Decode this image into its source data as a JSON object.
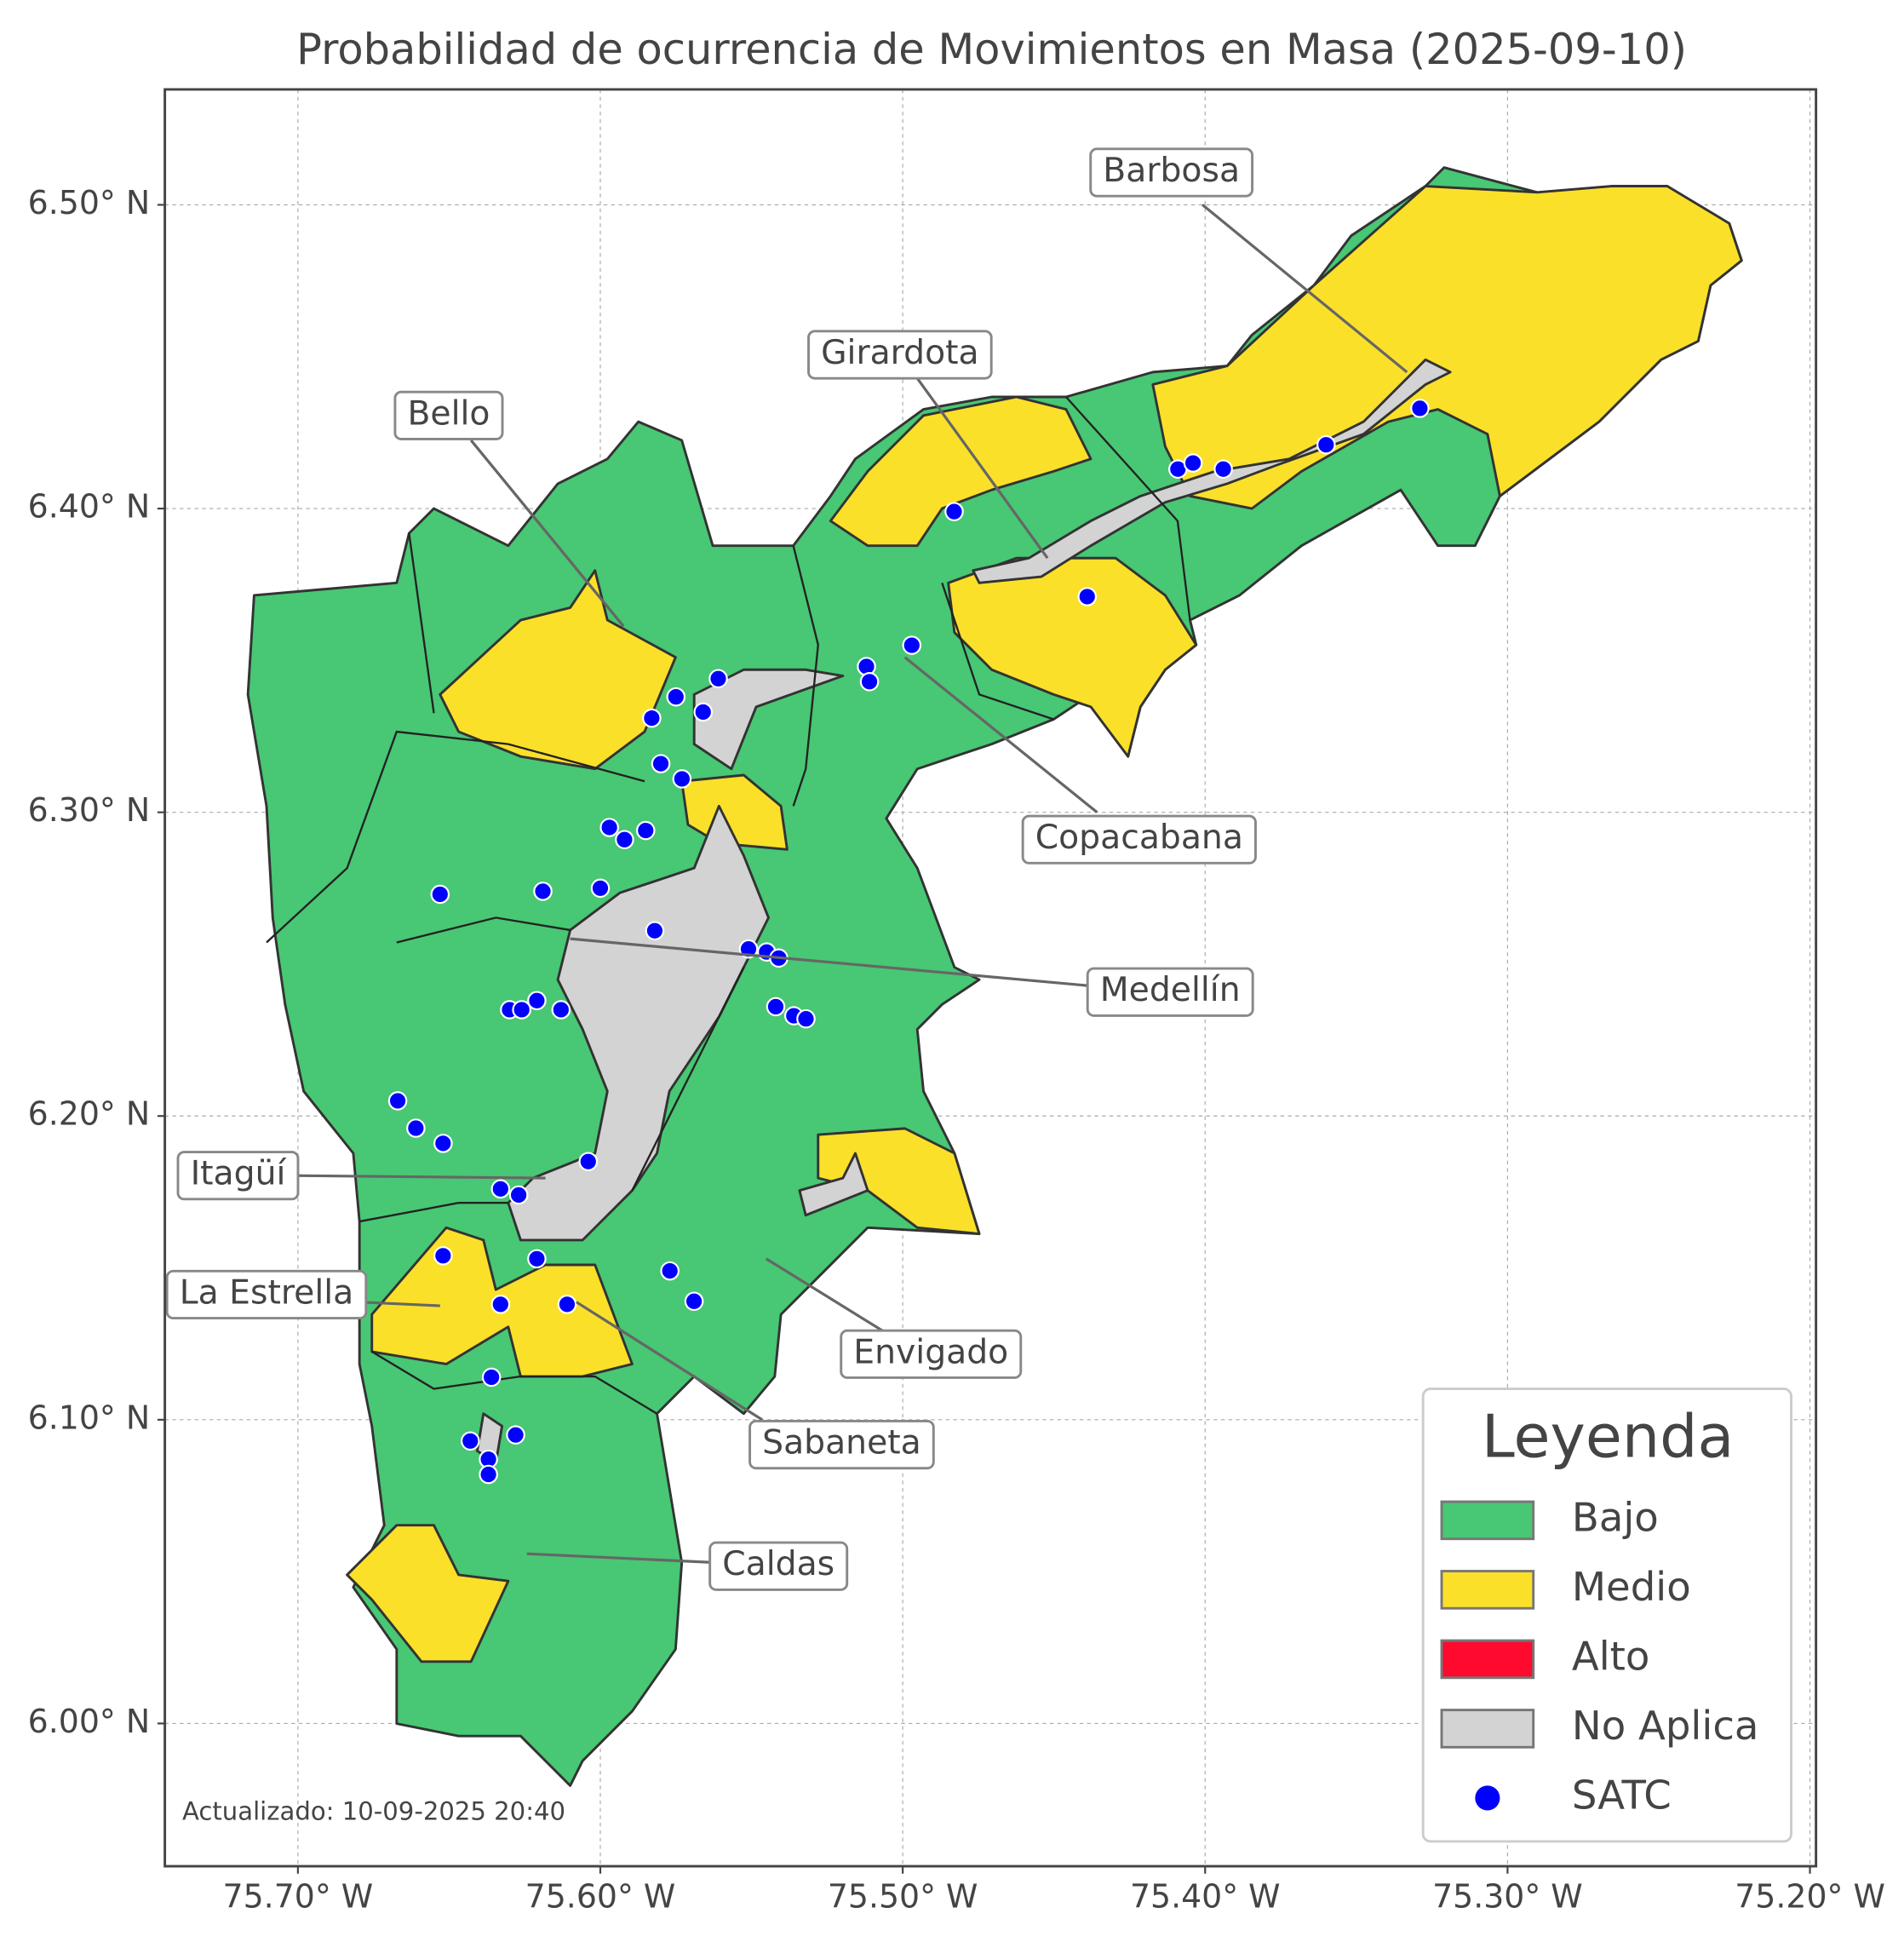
{
  "map": {
    "title": "Probabilidad de ocurrencia de Movimientos en Masa (2025-09-10)",
    "xlim": [
      -75.744,
      -75.198
    ],
    "ylim": [
      5.953,
      6.538
    ],
    "grid": true,
    "xticks": [
      {
        "value": -75.7,
        "label": "75.70° W"
      },
      {
        "value": -75.6,
        "label": "75.60° W"
      },
      {
        "value": -75.5,
        "label": "75.50° W"
      },
      {
        "value": -75.4,
        "label": "75.40° W"
      },
      {
        "value": -75.3,
        "label": "75.30° W"
      },
      {
        "value": -75.2,
        "label": "75.20° W"
      }
    ],
    "yticks": [
      {
        "value": 6.0,
        "label": "6.00° N"
      },
      {
        "value": 6.1,
        "label": "6.10° N"
      },
      {
        "value": 6.2,
        "label": "6.20° N"
      },
      {
        "value": 6.3,
        "label": "6.30° N"
      },
      {
        "value": 6.4,
        "label": "6.40° N"
      },
      {
        "value": 6.5,
        "label": "6.50° N"
      }
    ],
    "annotations": [
      "Barbosa",
      "Girardota",
      "Bello",
      "Copacabana",
      "Medellín",
      "Itagüí",
      "La Estrella",
      "Envigado",
      "Sabaneta",
      "Caldas"
    ],
    "legend": {
      "title": "Leyenda",
      "items": [
        {
          "label": "Bajo",
          "color": "#48c774"
        },
        {
          "label": "Medio",
          "color": "#fbe02a"
        },
        {
          "label": "Alto",
          "color": "#ff0a2f"
        },
        {
          "label": "No Aplica",
          "color": "#d3d3d3"
        },
        {
          "label": "SATC",
          "color": "#0000ff"
        }
      ]
    },
    "satc": {
      "lon": [
        -75.483,
        -75.409,
        -75.404,
        -75.394,
        -75.36,
        -75.329,
        -75.439,
        -75.497,
        -75.512,
        -75.511,
        -75.561,
        -75.575,
        -75.566,
        -75.583,
        -75.58,
        -75.573,
        -75.597,
        -75.592,
        -75.585,
        -75.619,
        -75.6,
        -75.653,
        -75.582,
        -75.551,
        -75.545,
        -75.541,
        -75.542,
        -75.536,
        -75.532,
        -75.63,
        -75.626,
        -75.621,
        -75.613,
        -75.667,
        -75.661,
        -75.652,
        -75.604,
        -75.633,
        -75.627,
        -75.652,
        -75.621,
        -75.577,
        -75.569,
        -75.633,
        -75.611,
        -75.636,
        -75.643,
        -75.628,
        -75.637,
        -75.637
      ],
      "lat": [
        6.399,
        6.413,
        6.415,
        6.413,
        6.421,
        6.433,
        6.371,
        6.355,
        6.348,
        6.343,
        6.344,
        6.338,
        6.333,
        6.331,
        6.316,
        6.311,
        6.295,
        6.291,
        6.294,
        6.274,
        6.275,
        6.273,
        6.261,
        6.255,
        6.254,
        6.252,
        6.236,
        6.233,
        6.232,
        6.235,
        6.235,
        6.238,
        6.235,
        6.205,
        6.196,
        6.191,
        6.185,
        6.176,
        6.174,
        6.154,
        6.153,
        6.149,
        6.139,
        6.138,
        6.138,
        6.114,
        6.093,
        6.095,
        6.087,
        6.082
      ]
    },
    "footer": "Actualizado: 10-09-2025 20:40"
  }
}
